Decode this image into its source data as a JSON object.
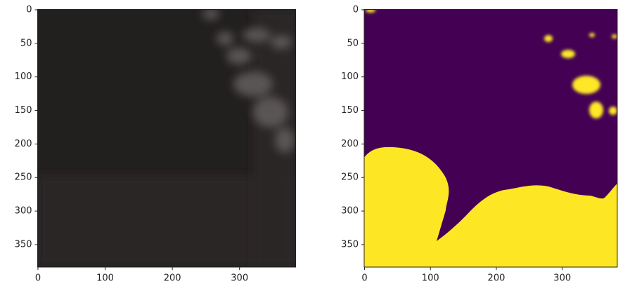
{
  "chart_data": [
    {
      "type": "image",
      "xlim": [
        -0.5,
        383.5
      ],
      "ylim": [
        383.5,
        -0.5
      ],
      "xticks": [
        0,
        100,
        200,
        300
      ],
      "yticks": [
        0,
        50,
        100,
        150,
        200,
        250,
        300,
        350
      ]
    },
    {
      "type": "image",
      "xlim": [
        -0.5,
        383.5
      ],
      "ylim": [
        383.5,
        -0.5
      ],
      "xticks": [
        0,
        100,
        200,
        300
      ],
      "yticks": [
        0,
        50,
        100,
        150,
        200,
        250,
        300,
        350
      ]
    }
  ]
}
